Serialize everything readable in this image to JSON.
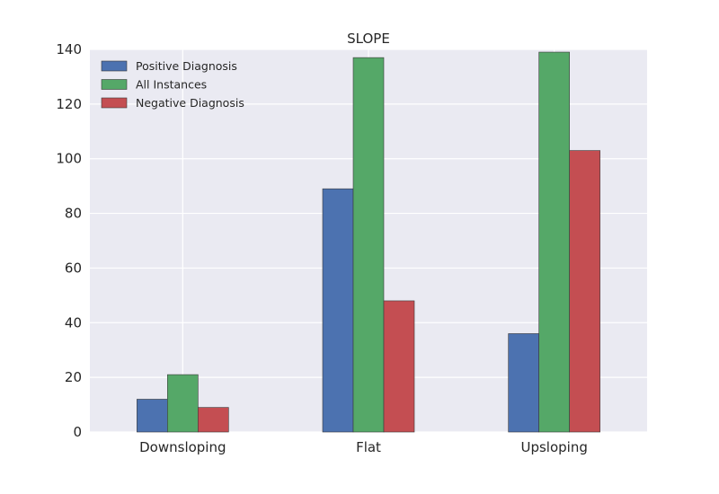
{
  "chart_data": {
    "type": "bar",
    "title": "SLOPE",
    "xlabel": "",
    "ylabel": "",
    "categories": [
      "Downsloping",
      "Flat",
      "Upsloping"
    ],
    "series": [
      {
        "name": "Positive Diagnosis",
        "values": [
          12,
          89,
          36
        ],
        "color": "#4c72b0"
      },
      {
        "name": "All Instances",
        "values": [
          21,
          137,
          139
        ],
        "color": "#55a868"
      },
      {
        "name": "Negative Diagnosis",
        "values": [
          9,
          48,
          103
        ],
        "color": "#c44e52"
      }
    ],
    "ylim": [
      0,
      140
    ],
    "yticks": [
      "0",
      "20",
      "40",
      "60",
      "80",
      "100",
      "120",
      "140"
    ],
    "grid": true,
    "legend_position": "top-left",
    "background": "#eaeaf2",
    "grid_color": "#ffffff"
  }
}
